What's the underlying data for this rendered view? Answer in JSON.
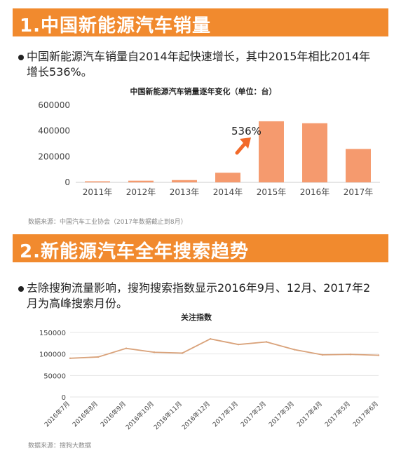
{
  "section1": {
    "title": "1.中国新能源汽车销量",
    "bullet": "中国新能源汽车销量自2014年起快速增长，其中2015年相比2014年增长536%。",
    "source": "数据来源：中国汽车工业协会（2017年数据截止到8月）"
  },
  "section2": {
    "title": "2.新能源汽车全年搜索趋势",
    "bullet": "去除搜狗流量影响，搜狗搜索指数显示2016年9月、12月、2017年2月为高峰搜索月份。",
    "source": "数据来源：搜狗大数据"
  },
  "colors": {
    "accent": "#f18a2e",
    "bar": "#f59a6e",
    "line": "#d9a27a",
    "arrow": "#f26a2a"
  },
  "chart_data": [
    {
      "type": "bar",
      "title": "中国新能源汽车销量逐年变化（单位：台）",
      "categories": [
        "2011年",
        "2012年",
        "2013年",
        "2014年",
        "2015年",
        "2016年",
        "2017年"
      ],
      "values": [
        8159,
        12791,
        17642,
        74763,
        475000,
        460000,
        260000
      ],
      "yticks": [
        "0",
        "200000",
        "400000",
        "600000"
      ],
      "ylim": [
        0,
        600000
      ],
      "annotation": "536%",
      "grid": false
    },
    {
      "type": "line",
      "title": "关注指数",
      "categories": [
        "2016年7月",
        "2016年8月",
        "2016年9月",
        "2016年10月",
        "2016年11月",
        "2016年12月",
        "2017年1月",
        "2017年2月",
        "2017年3月",
        "2017年4月",
        "2017年5月",
        "2017年6月"
      ],
      "values": [
        90000,
        93000,
        113000,
        104000,
        102000,
        135000,
        122000,
        128000,
        110000,
        98000,
        99000,
        97000
      ],
      "yticks": [
        "0",
        "50000",
        "100000",
        "150000"
      ],
      "ylim": [
        0,
        150000
      ],
      "grid": true
    }
  ]
}
